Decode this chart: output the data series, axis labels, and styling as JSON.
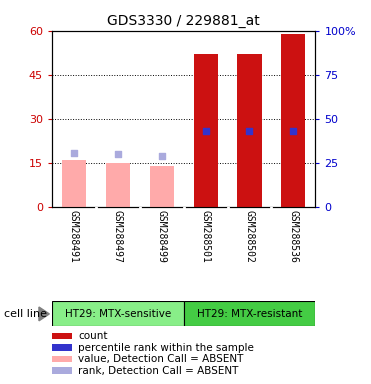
{
  "title": "GDS3330 / 229881_at",
  "samples": [
    "GSM288491",
    "GSM288497",
    "GSM288499",
    "GSM288501",
    "GSM288502",
    "GSM288536"
  ],
  "bar_values": [
    16,
    15,
    14,
    52,
    52,
    59
  ],
  "bar_colors": [
    "#ffaaaa",
    "#ffaaaa",
    "#ffaaaa",
    "#cc1111",
    "#cc1111",
    "#cc1111"
  ],
  "dot_values": [
    31,
    30,
    29,
    43,
    43,
    43
  ],
  "dot_colors": [
    "#aaaadd",
    "#aaaadd",
    "#aaaadd",
    "#3333cc",
    "#3333cc",
    "#3333cc"
  ],
  "ylim_left": [
    0,
    60
  ],
  "ylim_right": [
    0,
    100
  ],
  "yticks_left": [
    0,
    15,
    30,
    45,
    60
  ],
  "yticks_right": [
    0,
    25,
    50,
    75,
    100
  ],
  "ytick_labels_left": [
    "0",
    "15",
    "30",
    "45",
    "60"
  ],
  "ytick_labels_right": [
    "0",
    "25",
    "50",
    "75",
    "100%"
  ],
  "groups": [
    {
      "label": "HT29: MTX-sensitive",
      "indices": [
        0,
        1,
        2
      ],
      "color": "#88ee88"
    },
    {
      "label": "HT29: MTX-resistant",
      "indices": [
        3,
        4,
        5
      ],
      "color": "#44cc44"
    }
  ],
  "cell_line_label": "cell line",
  "legend_items": [
    {
      "color": "#cc1111",
      "label": "count"
    },
    {
      "color": "#3333cc",
      "label": "percentile rank within the sample"
    },
    {
      "color": "#ffaaaa",
      "label": "value, Detection Call = ABSENT"
    },
    {
      "color": "#aaaadd",
      "label": "rank, Detection Call = ABSENT"
    }
  ],
  "bar_width": 0.55,
  "dot_size": 25,
  "background_color": "#ffffff",
  "plot_bg_color": "#ffffff",
  "grid_color": "#333333",
  "left_tick_color": "#cc0000",
  "right_tick_color": "#0000cc",
  "sample_box_color": "#cccccc",
  "gridline_ticks": [
    15,
    30,
    45
  ]
}
